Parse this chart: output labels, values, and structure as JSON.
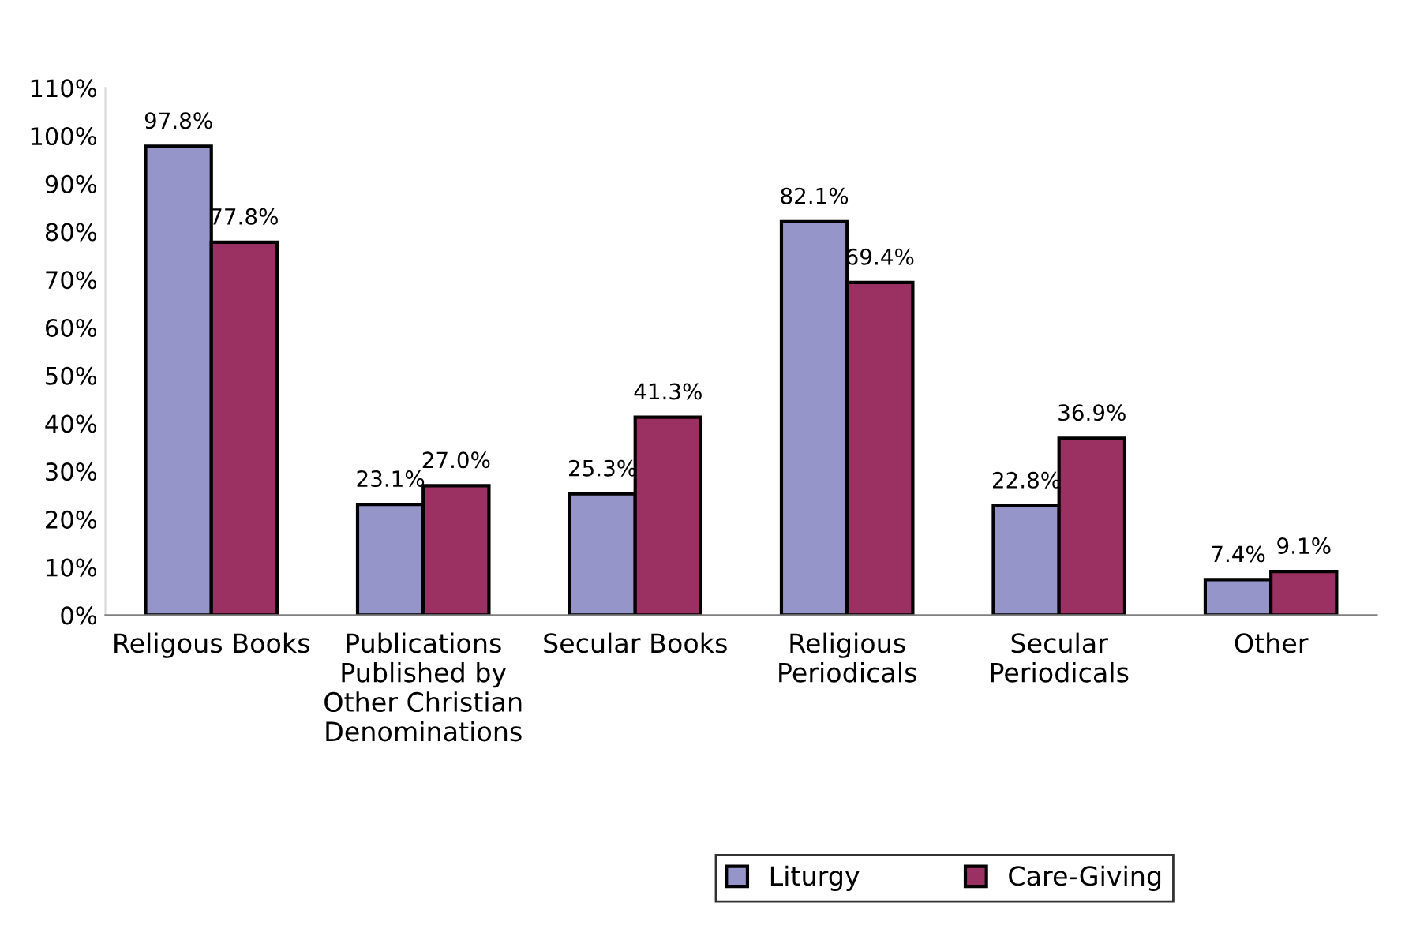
{
  "chart_data": {
    "type": "bar",
    "categories": [
      "Religous Books",
      "Publications\nPublished by\nOther Christian\nDenominations",
      "Secular Books",
      "Religious\nPeriodicals",
      "Secular\nPeriodicals",
      "Other"
    ],
    "series": [
      {
        "name": "Liturgy",
        "color": "#9595c9",
        "values": [
          97.8,
          23.1,
          25.3,
          82.1,
          22.8,
          7.4
        ],
        "value_labels": [
          "97.8%",
          "23.1%",
          "25.3%",
          "82.1%",
          "22.8%",
          "7.4%"
        ]
      },
      {
        "name": "Care-Giving",
        "color": "#9b3163",
        "values": [
          77.8,
          27.0,
          41.3,
          69.4,
          36.9,
          9.1
        ],
        "value_labels": [
          "77.8%",
          "27.0%",
          "41.3%",
          "69.4%",
          "36.9%",
          "9.1%"
        ]
      }
    ],
    "ylim": [
      0,
      110
    ],
    "yticks": [
      {
        "value": 0,
        "label": "0%"
      },
      {
        "value": 10,
        "label": "10%"
      },
      {
        "value": 20,
        "label": "20%"
      },
      {
        "value": 30,
        "label": "30%"
      },
      {
        "value": 40,
        "label": "40%"
      },
      {
        "value": 50,
        "label": "50%"
      },
      {
        "value": 60,
        "label": "60%"
      },
      {
        "value": 70,
        "label": "70%"
      },
      {
        "value": 80,
        "label": "80%"
      },
      {
        "value": 90,
        "label": "90%"
      },
      {
        "value": 100,
        "label": "100%"
      },
      {
        "value": 110,
        "label": "110%"
      }
    ],
    "grid": false,
    "legend": "bottom"
  }
}
